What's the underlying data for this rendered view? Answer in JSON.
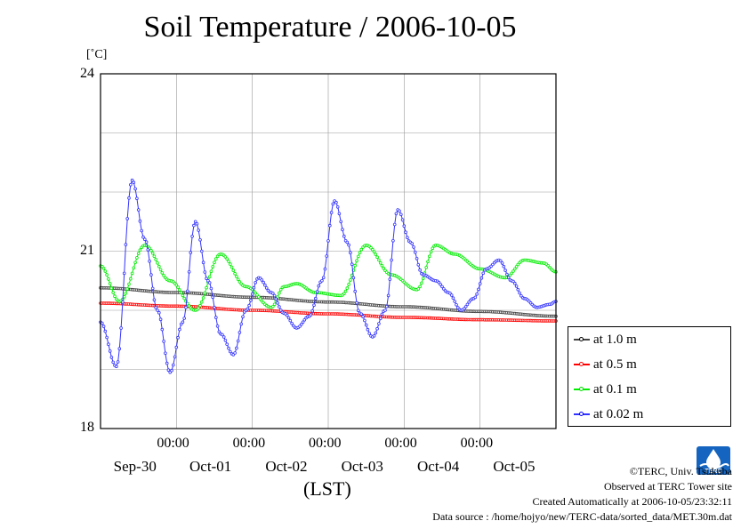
{
  "title": "Soil Temperature / 2006-10-05",
  "unit": "[˚C]",
  "y_ticks": [
    "24",
    "21",
    "18"
  ],
  "x_ticks_time": [
    "00:00",
    "00:00",
    "00:00",
    "00:00",
    "00:00"
  ],
  "x_ticks_date": [
    "Sep-30",
    "Oct-01",
    "Oct-02",
    "Oct-03",
    "Oct-04",
    "Oct-05"
  ],
  "xlabel": "(LST)",
  "legend": [
    {
      "label": "at 1.0 m",
      "color": "#555555",
      "dot": "#000000"
    },
    {
      "label": "at 0.5 m",
      "color": "#ff0000",
      "dot": "#ff0000"
    },
    {
      "label": "at 0.1 m",
      "color": "#00ee00",
      "dot": "#00dd00"
    },
    {
      "label": "at 0.02 m",
      "color": "#3333ff",
      "dot": "#0000ff"
    }
  ],
  "footer": {
    "copyright": "©TERC, Univ. Tsukuba",
    "observed": "Observed at TERC Tower site",
    "created": "Created Automatically at 2006-10-05/23:32:11",
    "source": "Data source : /home/hojyo/new/TERC-data/sorted_data/MET.30m.dat"
  },
  "logo": {
    "text": "TERC",
    "color": "#1565c0"
  },
  "chart_data": {
    "type": "line",
    "title": "Soil Temperature / 2006-10-05",
    "xlabel": "(LST)",
    "ylabel": "[˚C]",
    "x_unit": "hours since Sep-29 00:00",
    "xlim": [
      0,
      144
    ],
    "ylim": [
      18,
      24
    ],
    "grid": true,
    "legend_position": "right-bottom",
    "series": [
      {
        "name": "at 1.0 m",
        "color": "#444444",
        "x": [
          0,
          24,
          48,
          72,
          96,
          120,
          144
        ],
        "y": [
          20.38,
          20.3,
          20.22,
          20.14,
          20.06,
          19.98,
          19.9
        ]
      },
      {
        "name": "at 0.5 m",
        "color": "#ff0000",
        "x": [
          0,
          24,
          48,
          72,
          96,
          120,
          144
        ],
        "y": [
          20.12,
          20.07,
          20.0,
          19.94,
          19.88,
          19.84,
          19.82
        ]
      },
      {
        "name": "at 0.1 m",
        "color": "#00ee00",
        "x": [
          0,
          6,
          14,
          22,
          30,
          38,
          46,
          54,
          58,
          62,
          68,
          76,
          84,
          92,
          100,
          106,
          112,
          120,
          128,
          134,
          140,
          144
        ],
        "y": [
          20.75,
          20.15,
          21.1,
          20.5,
          20.0,
          20.95,
          20.4,
          20.05,
          20.4,
          20.45,
          20.3,
          20.25,
          21.1,
          20.6,
          20.35,
          21.1,
          20.95,
          20.7,
          20.55,
          20.85,
          20.8,
          20.65
        ]
      },
      {
        "name": "at 0.02 m",
        "color": "#3333ff",
        "x": [
          0,
          5,
          10,
          14,
          18,
          22,
          26,
          30,
          34,
          38,
          42,
          46,
          50,
          54,
          58,
          62,
          66,
          70,
          74,
          78,
          82,
          86,
          90,
          94,
          98,
          102,
          106,
          110,
          114,
          118,
          122,
          126,
          130,
          134,
          138,
          142,
          144
        ],
        "y": [
          19.8,
          19.05,
          22.2,
          21.2,
          20.0,
          18.95,
          19.8,
          21.5,
          20.5,
          19.6,
          19.25,
          20.0,
          20.55,
          20.3,
          19.95,
          19.7,
          19.9,
          20.5,
          21.85,
          21.15,
          19.95,
          19.55,
          20.0,
          21.7,
          21.15,
          20.6,
          20.5,
          20.3,
          20.0,
          20.2,
          20.7,
          20.85,
          20.5,
          20.2,
          20.05,
          20.1,
          20.15
        ]
      }
    ]
  }
}
